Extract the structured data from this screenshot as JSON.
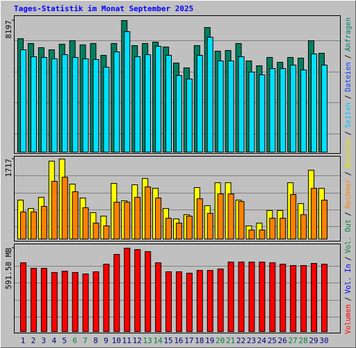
{
  "title": "Tages-Statistik im Monat September 2025",
  "categories": [
    "1",
    "2",
    "3",
    "4",
    "5",
    "6",
    "7",
    "8",
    "9",
    "10",
    "11",
    "12",
    "13",
    "14",
    "15",
    "16",
    "17",
    "18",
    "19",
    "20",
    "21",
    "22",
    "23",
    "24",
    "25",
    "26",
    "27",
    "28",
    "29",
    "30"
  ],
  "category_colors": [
    "#000080",
    "#000080",
    "#000080",
    "#000080",
    "#000080",
    "#008040",
    "#008040",
    "#000080",
    "#000080",
    "#000080",
    "#000080",
    "#000080",
    "#008040",
    "#008040",
    "#000080",
    "#000080",
    "#000080",
    "#000080",
    "#000080",
    "#008040",
    "#008040",
    "#000080",
    "#000080",
    "#000080",
    "#000080",
    "#000080",
    "#008040",
    "#008040",
    "#000080",
    "#000080"
  ],
  "legend_separator": "/",
  "legend": [
    {
      "label": "Volumen",
      "color": "#ff0000"
    },
    {
      "label": "Vol. In",
      "color": "#0000ff"
    },
    {
      "label": "Vol. Out",
      "color": "#008040"
    },
    {
      "label": "Rechner",
      "color": "#ff8000"
    },
    {
      "label": "Besuche",
      "color": "#e0e000"
    },
    {
      "label": "Seiten",
      "color": "#00c0ff"
    },
    {
      "label": "Dateien",
      "color": "#0040ff"
    },
    {
      "label": "Anfragen",
      "color": "#008060"
    }
  ],
  "chart_data": [
    {
      "type": "bar",
      "ylim": [
        0,
        8197
      ],
      "yticks": [
        8197
      ],
      "series": [
        {
          "color": "#008060",
          "values": [
            7069,
            6766,
            6506,
            6375,
            6722,
            6939,
            6679,
            6766,
            6028,
            6766,
            8197,
            6636,
            6766,
            6852,
            6549,
            5551,
            5248,
            6636,
            7763,
            6289,
            6332,
            6766,
            5681,
            5378,
            5898,
            5595,
            5898,
            5855,
            6939,
            6158
          ]
        },
        {
          "color": "#00e0ff",
          "values": [
            6375,
            5942,
            5898,
            5812,
            6072,
            5898,
            5812,
            5768,
            5291,
            6245,
            7503,
            5942,
            6072,
            6592,
            6028,
            4771,
            4554,
            6028,
            7156,
            5681,
            5681,
            5942,
            4988,
            4814,
            5204,
            5204,
            5421,
            5118,
            6115,
            5421
          ]
        }
      ]
    },
    {
      "type": "bar",
      "ylim": [
        0,
        1717
      ],
      "yticks": [
        1717
      ],
      "series": [
        {
          "color": "#ffff00",
          "values": [
            836,
            657,
            896,
            1672,
            1717,
            1179,
            881,
            567,
            493,
            1194,
            821,
            1165,
            1299,
            1090,
            657,
            433,
            523,
            1105,
            717,
            1209,
            1209,
            836,
            284,
            343,
            612,
            612,
            1209,
            761,
            1478,
            1090
          ]
        },
        {
          "color": "#ff8000",
          "values": [
            582,
            582,
            702,
            1239,
            1329,
            1015,
            672,
            343,
            284,
            791,
            791,
            896,
            1120,
            881,
            448,
            343,
            493,
            866,
            552,
            970,
            970,
            806,
            194,
            194,
            448,
            448,
            955,
            523,
            1090,
            836
          ]
        }
      ]
    },
    {
      "type": "bar",
      "ylim": [
        0,
        591.58
      ],
      "yticks": [
        {
          "value": 591.58,
          "label": "591.58 MB"
        }
      ],
      "series": [
        {
          "color": "#ff0000",
          "values": [
            488.1,
            448.6,
            448.6,
            419.1,
            428.9,
            419.1,
            409.2,
            424.0,
            478.2,
            547.2,
            591.58,
            581.7,
            567.0,
            488.1,
            424.0,
            424.0,
            414.1,
            433.8,
            433.8,
            443.7,
            493.0,
            493.0,
            493.0,
            493.0,
            488.1,
            478.2,
            468.4,
            468.4,
            483.1,
            478.2
          ]
        }
      ]
    }
  ]
}
